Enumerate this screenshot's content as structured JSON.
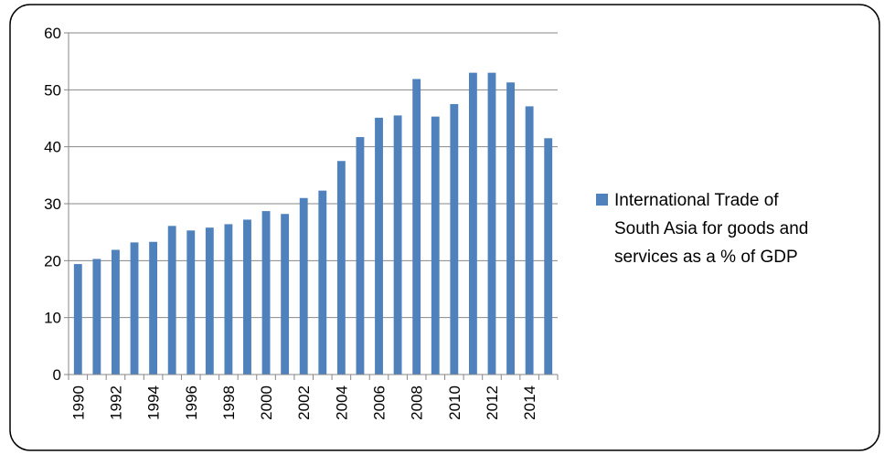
{
  "chart_data": {
    "type": "bar",
    "categories": [
      "1990",
      "1991",
      "1992",
      "1993",
      "1994",
      "1995",
      "1996",
      "1997",
      "1998",
      "1999",
      "2000",
      "2001",
      "2002",
      "2003",
      "2004",
      "2005",
      "2006",
      "2007",
      "2008",
      "2009",
      "2010",
      "2011",
      "2012",
      "2013",
      "2014",
      "2015"
    ],
    "x_tick_labels": [
      "1990",
      "1992",
      "1994",
      "1996",
      "1998",
      "2000",
      "2002",
      "2004",
      "2006",
      "2008",
      "2010",
      "2012",
      "2014"
    ],
    "series": [
      {
        "name": "International Trade of South Asia for goods and services as a % of GDP",
        "values": [
          19.4,
          20.3,
          21.9,
          23.2,
          23.3,
          26.1,
          25.3,
          25.8,
          26.4,
          27.2,
          28.7,
          28.2,
          31.0,
          32.3,
          37.5,
          41.7,
          45.1,
          45.5,
          51.9,
          45.3,
          47.5,
          53.0,
          53.0,
          51.3,
          47.1,
          41.5
        ],
        "color": "#4f81bd"
      }
    ],
    "y_ticks": [
      0,
      10,
      20,
      30,
      40,
      50,
      60
    ],
    "ylim": [
      0,
      60
    ],
    "title": "",
    "xlabel": "",
    "ylabel": "",
    "grid": true,
    "legend": {
      "position": "right",
      "lines": [
        "International Trade of",
        "South Asia for goods and",
        "services as a % of GDP"
      ]
    }
  }
}
